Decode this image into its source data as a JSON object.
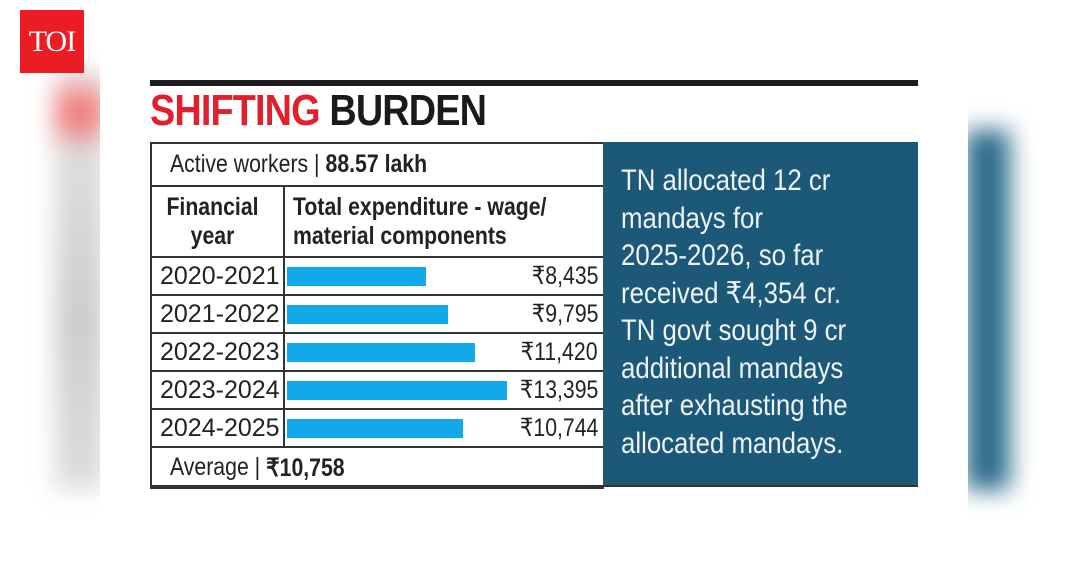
{
  "logo": "TOI",
  "title": {
    "part1": "SHIFTING",
    "part2": "BURDEN"
  },
  "colors": {
    "bar": "#12a9e8",
    "panel": "#1c5877",
    "title_red": "#e21f2c",
    "logo": "#ec1c24"
  },
  "active_workers": {
    "label": "Active workers |",
    "value": "88.57 lakh"
  },
  "headers": {
    "year": "Financial year",
    "expenditure": "Total expenditure - wage/ material components"
  },
  "average": {
    "label": "Average |",
    "value": "₹10,758"
  },
  "note": "TN allocated 12 cr\nmandays for\n2025-2026, so far\nreceived ₹4,354 cr.\nTN govt sought 9 cr\nadditional mandays\nafter exhausting the\nallocated mandays.",
  "chart_data": {
    "type": "bar",
    "orientation": "horizontal",
    "categories": [
      "2020-2021",
      "2021-2022",
      "2022-2023",
      "2023-2024",
      "2024-2025"
    ],
    "values": [
      8435,
      9795,
      11420,
      13395,
      10744
    ],
    "labels": [
      "₹8,435",
      "₹9,795",
      "₹11,420",
      "₹13,395",
      "₹10,744"
    ],
    "title": "SHIFTING BURDEN",
    "xlabel": "Total expenditure - wage/ material components",
    "ylabel": "Financial year",
    "grid": false
  }
}
